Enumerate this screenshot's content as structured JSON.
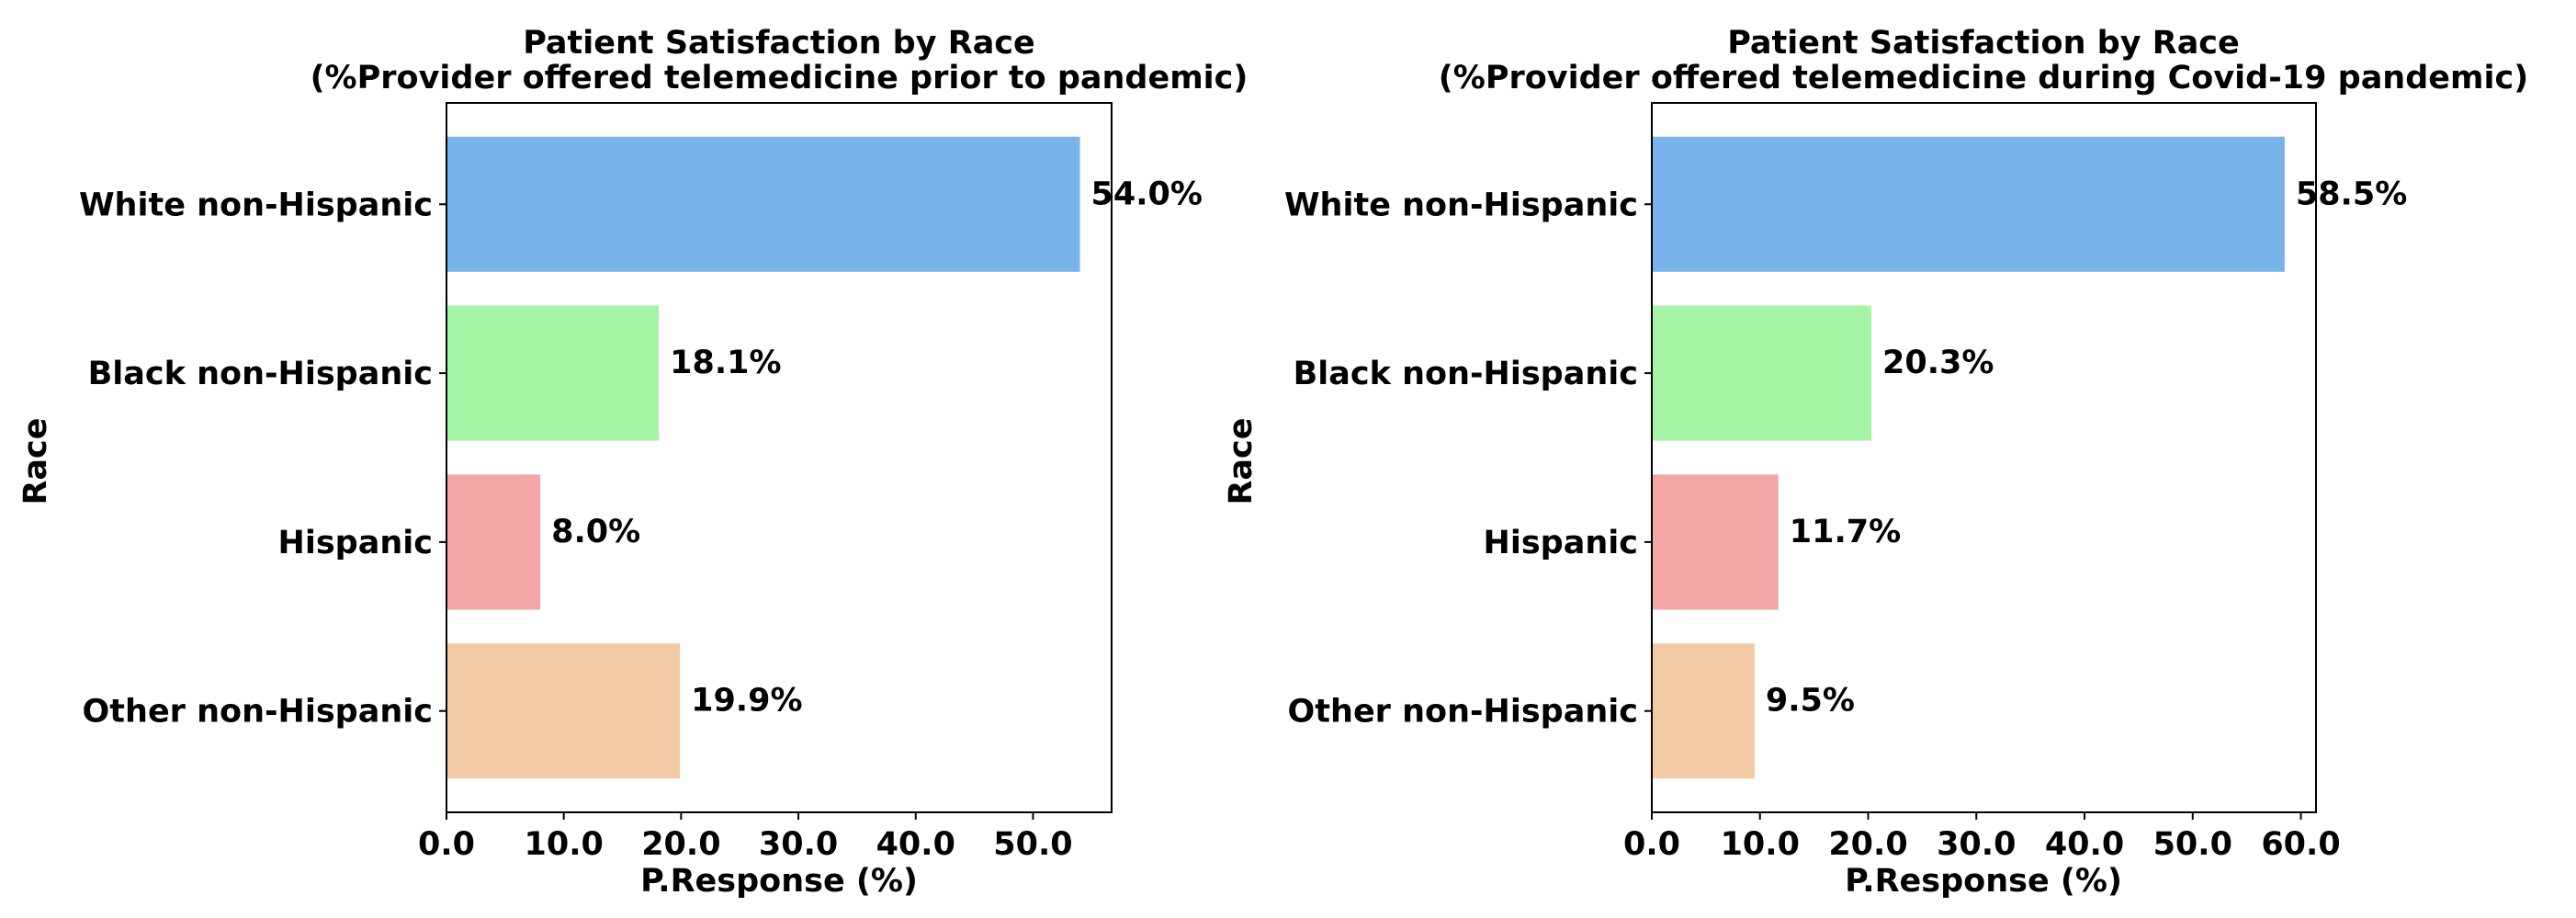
{
  "chart_data": [
    {
      "type": "bar",
      "orientation": "horizontal",
      "title": "Patient Satisfaction by Race",
      "subtitle": "(%Provider offered telemedicine prior to pandemic)",
      "xlabel": "P.Response (%)",
      "ylabel": "Race",
      "categories": [
        "White non-Hispanic",
        "Black non-Hispanic",
        "Hispanic",
        "Other non-Hispanic"
      ],
      "values": [
        54.0,
        18.1,
        8.0,
        19.9
      ],
      "value_labels": [
        "54.0%",
        "18.1%",
        "8.0%",
        "19.9%"
      ],
      "xticks": [
        0,
        10,
        20,
        30,
        40,
        50
      ],
      "xtick_labels": [
        "0.0",
        "10.0",
        "20.0",
        "30.0",
        "40.0",
        "50.0"
      ],
      "xlim": [
        0,
        56.7
      ],
      "grid": false
    },
    {
      "type": "bar",
      "orientation": "horizontal",
      "title": "Patient Satisfaction by Race",
      "subtitle": "(%Provider offered telemedicine during Covid-19 pandemic)",
      "xlabel": "P.Response (%)",
      "ylabel": "Race",
      "categories": [
        "White non-Hispanic",
        "Black non-Hispanic",
        "Hispanic",
        "Other non-Hispanic"
      ],
      "values": [
        58.5,
        20.3,
        11.7,
        9.5
      ],
      "value_labels": [
        "58.5%",
        "20.3%",
        "11.7%",
        "9.5%"
      ],
      "xticks": [
        0,
        10,
        20,
        30,
        40,
        50,
        60
      ],
      "xtick_labels": [
        "0.0",
        "10.0",
        "20.0",
        "30.0",
        "40.0",
        "50.0",
        "60.0"
      ],
      "xlim": [
        0,
        61.4
      ],
      "grid": false
    }
  ],
  "colors": {
    "bars": [
      "#78b3ec",
      "#a6f4a6",
      "#f2a6a6",
      "#f2cba6"
    ],
    "axis": "#000000"
  }
}
